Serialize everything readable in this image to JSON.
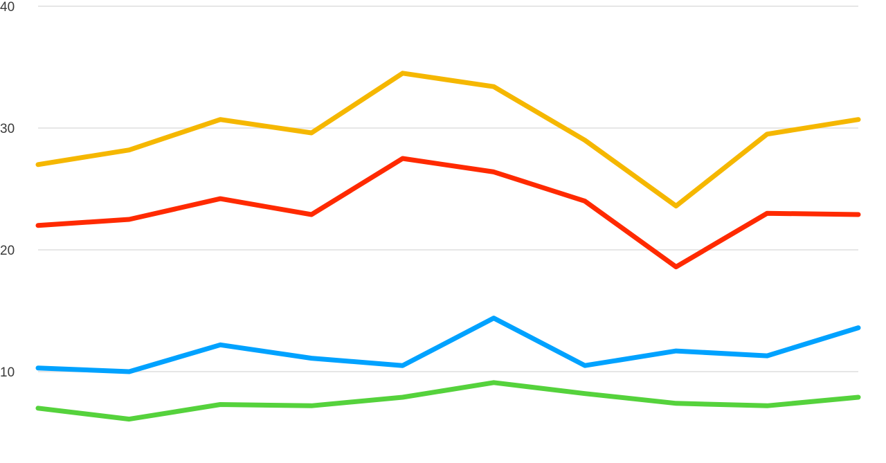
{
  "chart_data": {
    "type": "line",
    "title": "",
    "xlabel": "",
    "ylabel": "",
    "ylim": [
      5,
      40
    ],
    "yticks": [
      10,
      20,
      30,
      40
    ],
    "grid": true,
    "legend": "none",
    "x": [
      1,
      2,
      3,
      4,
      5,
      6,
      7,
      8,
      9,
      10
    ],
    "series": [
      {
        "color": "#f5b700",
        "values": [
          27.0,
          28.2,
          30.7,
          29.6,
          34.5,
          33.4,
          29.0,
          23.6,
          29.5,
          30.7
        ]
      },
      {
        "color": "#ff2a00",
        "values": [
          22.0,
          22.5,
          24.2,
          22.9,
          27.5,
          26.4,
          24.0,
          18.6,
          23.0,
          22.9
        ]
      },
      {
        "color": "#00a2ff",
        "values": [
          10.3,
          10.0,
          12.2,
          11.1,
          10.5,
          14.4,
          10.5,
          11.7,
          11.3,
          13.6
        ]
      },
      {
        "color": "#55d23c",
        "values": [
          7.0,
          6.1,
          7.3,
          7.2,
          7.9,
          9.1,
          8.2,
          7.4,
          7.2,
          7.9
        ]
      }
    ]
  }
}
